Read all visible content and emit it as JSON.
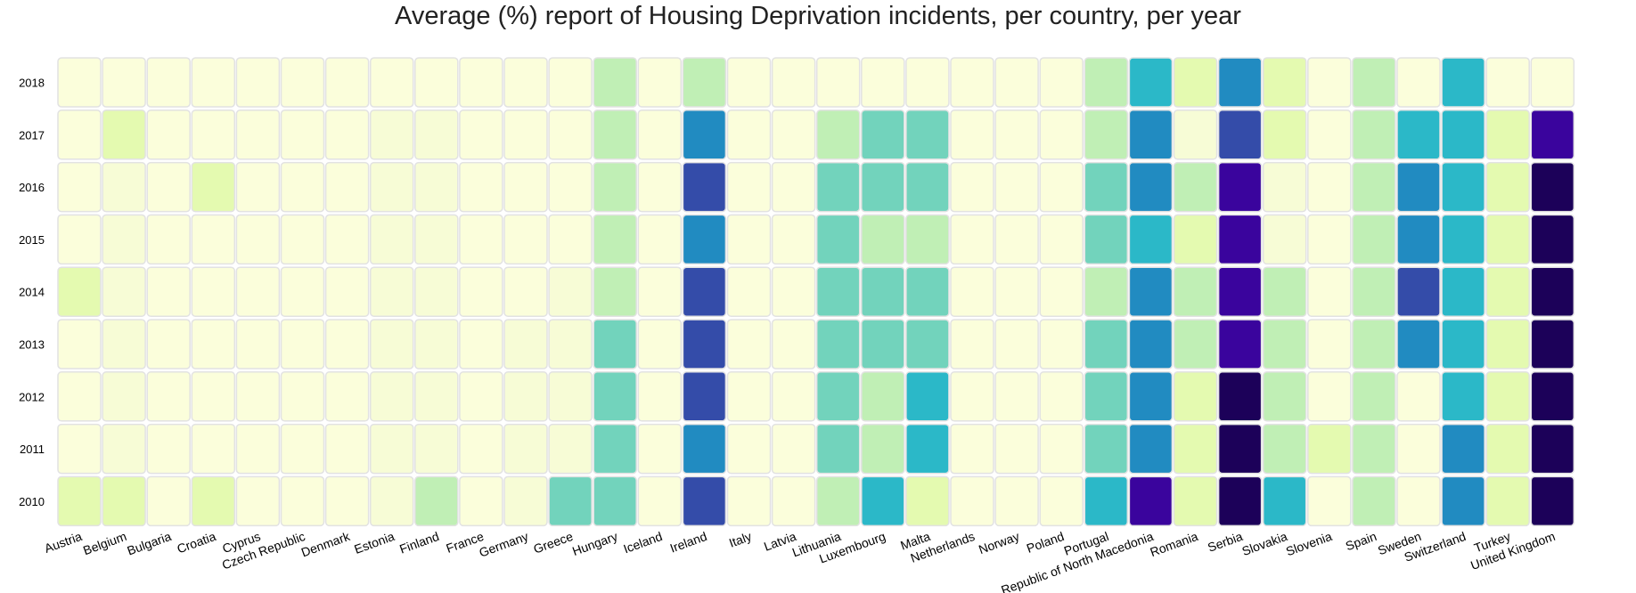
{
  "chart_data": {
    "type": "heatmap",
    "title": "Average (%) report of Housing Deprivation incidents, per country, per year",
    "xlabel": "",
    "ylabel": "",
    "x": [
      "Austria",
      "Belgium",
      "Bulgaria",
      "Croatia",
      "Cyprus",
      "Czech Republic",
      "Denmark",
      "Estonia",
      "Finland",
      "France",
      "Germany",
      "Greece",
      "Hungary",
      "Iceland",
      "Ireland",
      "Italy",
      "Latvia",
      "Lithuania",
      "Luxembourg",
      "Malta",
      "Netherlands",
      "Norway",
      "Poland",
      "Portugal",
      "Republic of North Macedonia",
      "Romania",
      "Serbia",
      "Slovakia",
      "Slovenia",
      "Spain",
      "Sweden",
      "Switzerland",
      "Turkey",
      "United Kingdom"
    ],
    "y": [
      "2018",
      "2017",
      "2016",
      "2015",
      "2014",
      "2013",
      "2012",
      "2011",
      "2010"
    ],
    "color_scale": [
      "#fbfedb",
      "#f7fcd6",
      "#e4fab0",
      "#c0efb5",
      "#72d3bc",
      "#2bb8c8",
      "#218bc1",
      "#344ca9",
      "#3a049d",
      "#1c0159"
    ],
    "values": [
      [
        0,
        0,
        0,
        0,
        0,
        0,
        0,
        0,
        0,
        0,
        0,
        0,
        3,
        0,
        3,
        0,
        0,
        0,
        0,
        0,
        0,
        0,
        0,
        3,
        5,
        2,
        6,
        2,
        0,
        3,
        0,
        5,
        0,
        0
      ],
      [
        0,
        2,
        0,
        0,
        0,
        0,
        0,
        1,
        1,
        0,
        0,
        0,
        3,
        0,
        6,
        0,
        0,
        3,
        4,
        4,
        0,
        0,
        0,
        3,
        6,
        1,
        7,
        2,
        0,
        3,
        5,
        5,
        2,
        8
      ],
      [
        0,
        1,
        0,
        2,
        0,
        0,
        0,
        1,
        1,
        0,
        0,
        0,
        3,
        0,
        7,
        0,
        0,
        4,
        4,
        4,
        0,
        0,
        0,
        4,
        6,
        3,
        8,
        1,
        0,
        3,
        6,
        5,
        2,
        9
      ],
      [
        0,
        1,
        0,
        0,
        0,
        0,
        0,
        1,
        1,
        0,
        0,
        0,
        3,
        0,
        6,
        0,
        0,
        4,
        3,
        3,
        0,
        0,
        0,
        4,
        5,
        2,
        8,
        1,
        0,
        3,
        6,
        5,
        2,
        9
      ],
      [
        2,
        1,
        0,
        0,
        0,
        0,
        0,
        1,
        1,
        0,
        0,
        1,
        3,
        0,
        7,
        0,
        0,
        4,
        4,
        4,
        0,
        0,
        0,
        3,
        6,
        3,
        8,
        3,
        0,
        3,
        7,
        5,
        2,
        9
      ],
      [
        0,
        1,
        0,
        0,
        0,
        0,
        0,
        1,
        1,
        0,
        1,
        1,
        4,
        0,
        7,
        0,
        0,
        4,
        4,
        4,
        0,
        0,
        0,
        4,
        6,
        3,
        8,
        3,
        0,
        3,
        6,
        5,
        2,
        9
      ],
      [
        0,
        1,
        0,
        0,
        0,
        0,
        0,
        1,
        1,
        0,
        1,
        1,
        4,
        0,
        7,
        0,
        0,
        4,
        3,
        5,
        0,
        0,
        0,
        4,
        6,
        2,
        9,
        3,
        0,
        3,
        0,
        5,
        2,
        9
      ],
      [
        0,
        1,
        0,
        0,
        0,
        0,
        0,
        1,
        1,
        0,
        1,
        1,
        4,
        0,
        6,
        0,
        0,
        4,
        3,
        5,
        0,
        0,
        0,
        4,
        6,
        2,
        9,
        3,
        2,
        3,
        0,
        6,
        2,
        9
      ],
      [
        2,
        2,
        0,
        2,
        0,
        0,
        0,
        1,
        3,
        0,
        1,
        4,
        4,
        0,
        7,
        0,
        0,
        3,
        5,
        2,
        0,
        0,
        0,
        5,
        8,
        2,
        9,
        5,
        0,
        3,
        0,
        6,
        2,
        9
      ]
    ]
  }
}
